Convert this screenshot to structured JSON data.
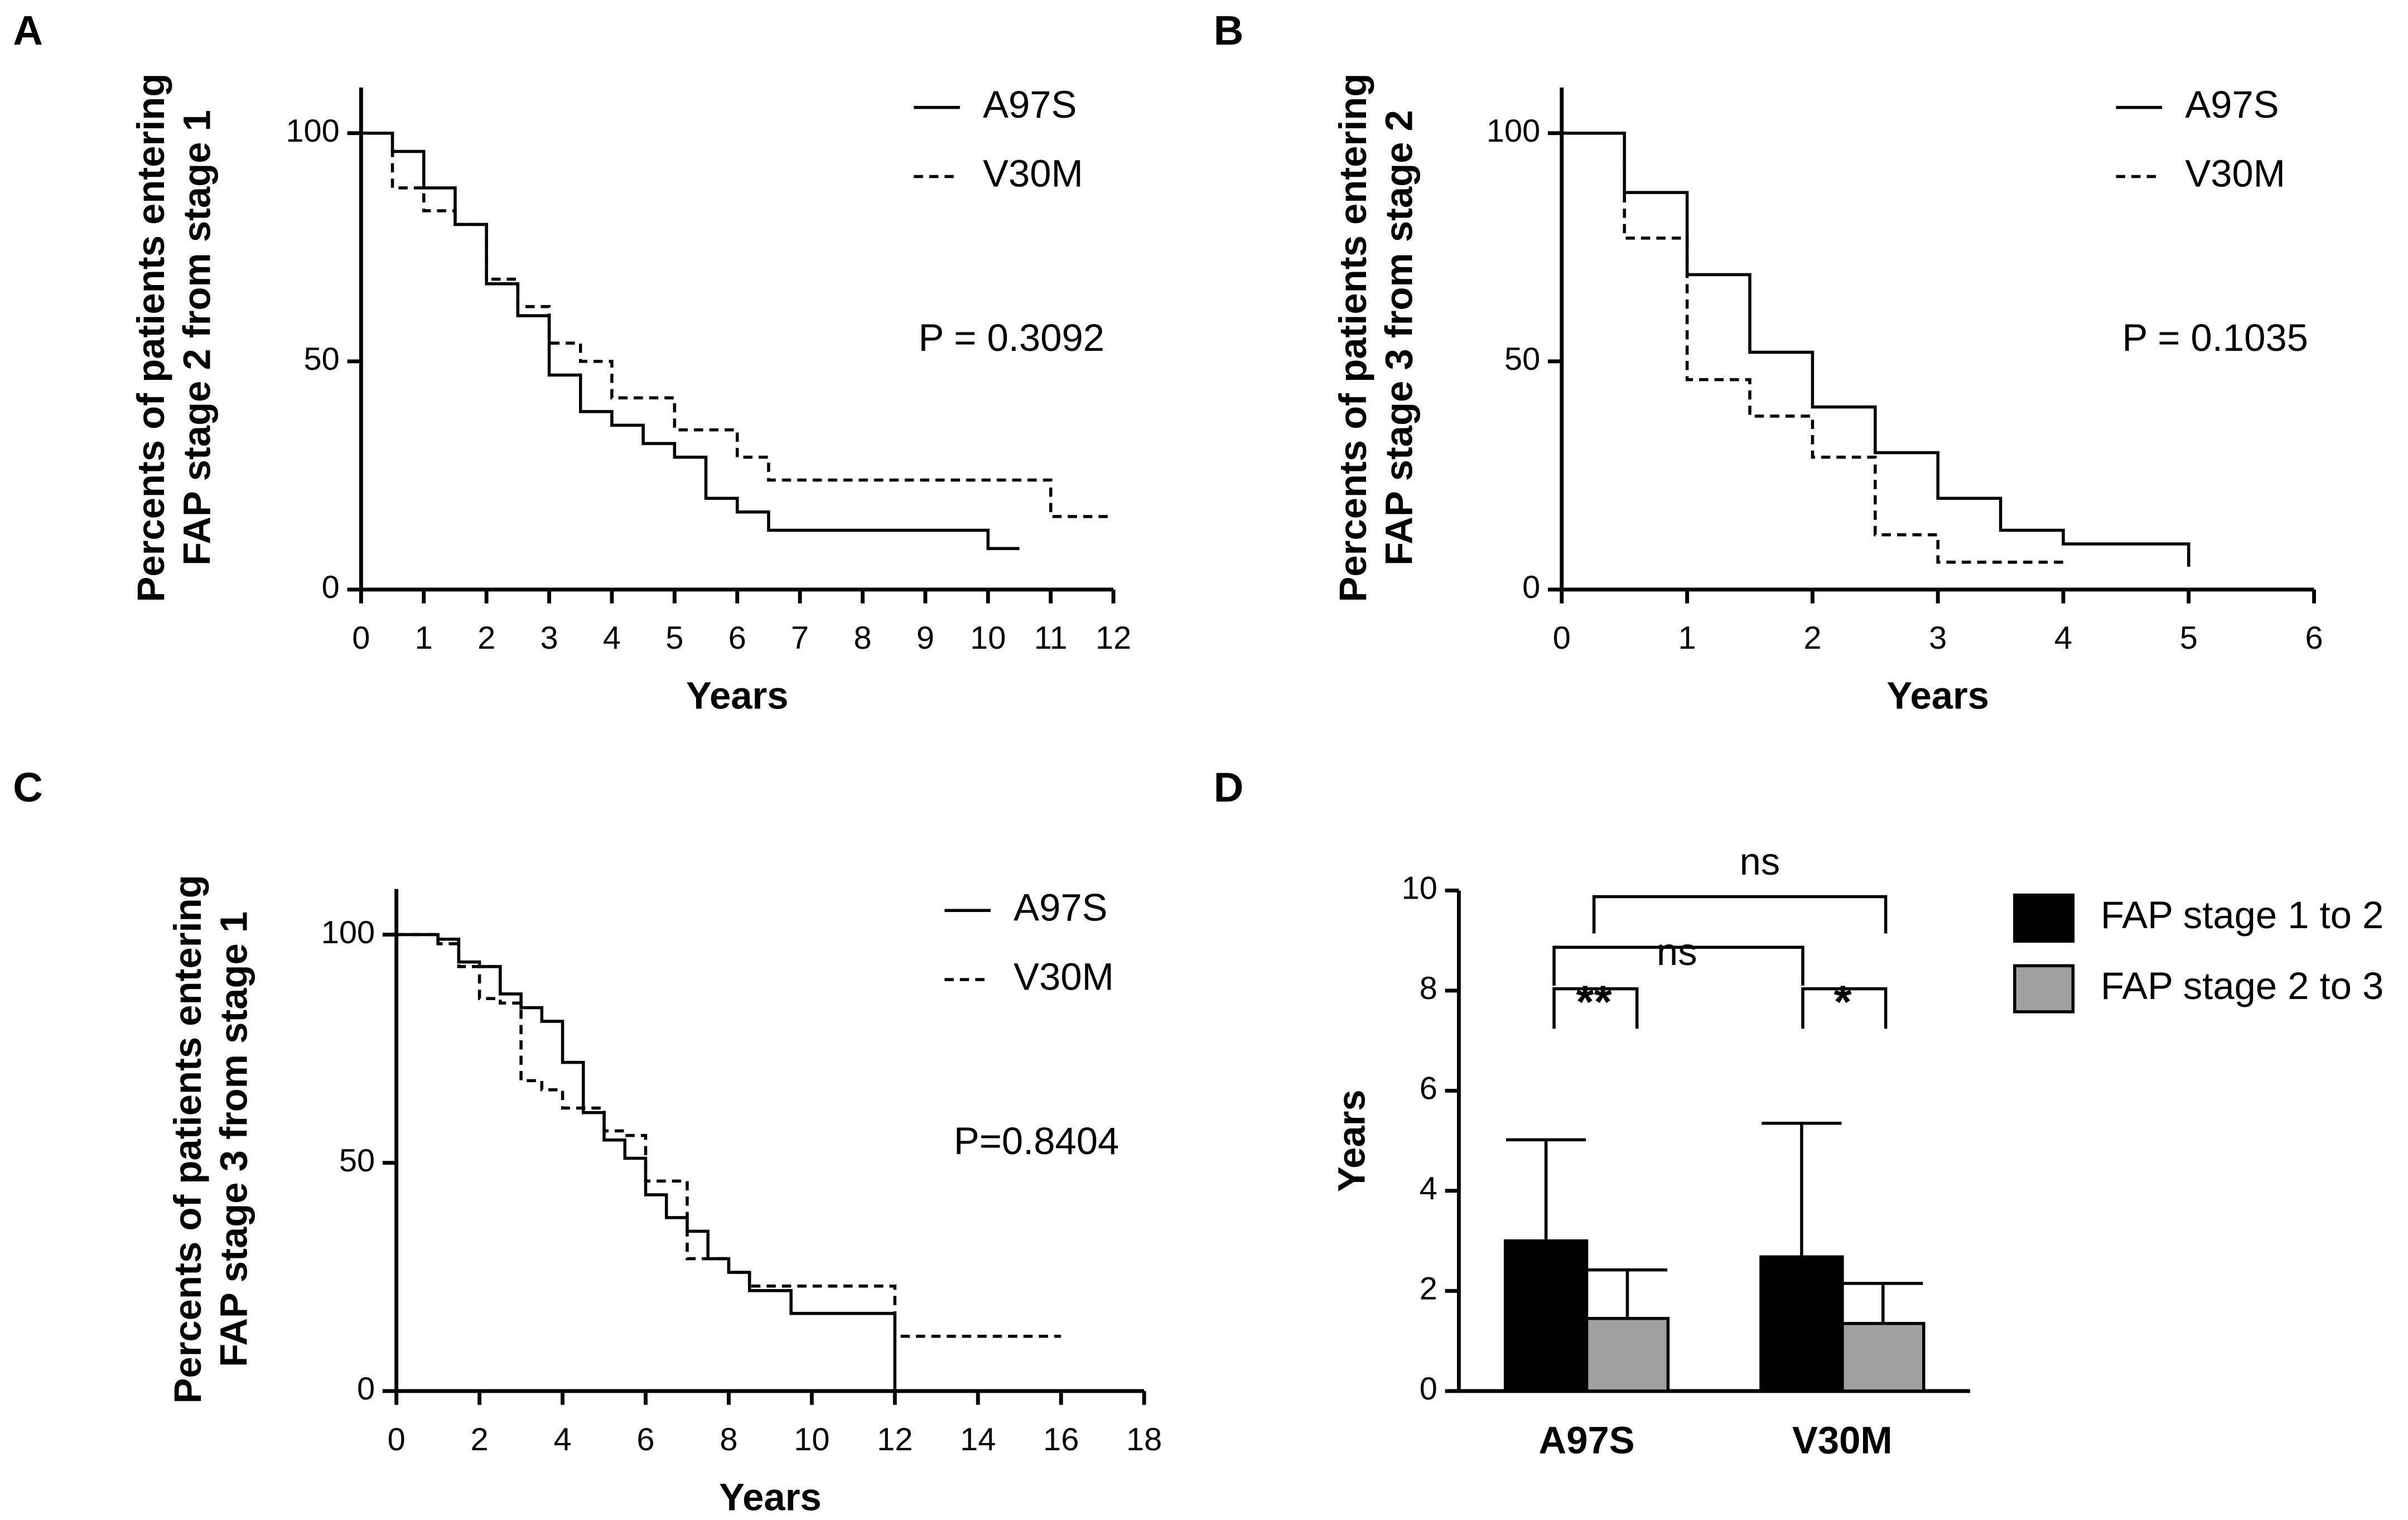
{
  "chart_data": [
    {
      "type": "step",
      "label": "A",
      "ylabel": [
        "Percents of patients entering",
        "FAP stage 2 from stage 1"
      ],
      "xlabel": "Years",
      "annotation": "P = 0.3092",
      "xlim": [
        0,
        12
      ],
      "ylim": [
        0,
        110
      ],
      "xticks": [
        0,
        1,
        2,
        3,
        4,
        5,
        6,
        7,
        8,
        9,
        10,
        11,
        12
      ],
      "yticks": [
        0,
        50,
        100
      ],
      "series": [
        {
          "name": "A97S",
          "color": "#000000",
          "dash": false,
          "x": [
            0,
            0.5,
            1,
            1.5,
            2,
            2.5,
            3,
            3.5,
            4,
            4.5,
            5,
            5.5,
            6,
            6.5,
            10,
            10.5
          ],
          "values": [
            100,
            96,
            88,
            80,
            67,
            60,
            47,
            39,
            36,
            32,
            29,
            20,
            17,
            13,
            9,
            9
          ]
        },
        {
          "name": "V30M",
          "color": "#000000",
          "dash": true,
          "x": [
            0,
            0.5,
            1,
            1.5,
            2,
            2.5,
            3,
            3.5,
            4,
            5,
            6,
            6.5,
            11,
            12
          ],
          "values": [
            100,
            88,
            83,
            80,
            68,
            62,
            54,
            50,
            42,
            35,
            29,
            24,
            16,
            16
          ]
        }
      ]
    },
    {
      "type": "step",
      "label": "B",
      "ylabel": [
        "Percents of patients entering",
        "FAP stage 3 from stage 2"
      ],
      "xlabel": "Years",
      "annotation": "P = 0.1035",
      "xlim": [
        0,
        6
      ],
      "ylim": [
        0,
        110
      ],
      "xticks": [
        0,
        1,
        2,
        3,
        4,
        5,
        6
      ],
      "yticks": [
        0,
        50,
        100
      ],
      "series": [
        {
          "name": "A97S",
          "color": "#000000",
          "dash": false,
          "x": [
            0,
            0.5,
            1,
            1.5,
            2,
            2.5,
            3,
            3.5,
            4,
            5
          ],
          "values": [
            100,
            87,
            69,
            52,
            40,
            30,
            20,
            13,
            10,
            5
          ]
        },
        {
          "name": "V30M",
          "color": "#000000",
          "dash": true,
          "x": [
            0,
            0.5,
            1,
            1.5,
            2,
            2.5,
            3,
            4
          ],
          "values": [
            100,
            77,
            46,
            38,
            29,
            12,
            6,
            6
          ]
        }
      ]
    },
    {
      "type": "step",
      "label": "C",
      "ylabel": [
        "Percents of patients entering",
        "FAP stage 3 from stage 1"
      ],
      "xlabel": "Years",
      "annotation": "P=0.8404",
      "xlim": [
        0,
        18
      ],
      "ylim": [
        0,
        110
      ],
      "xticks": [
        0,
        2,
        4,
        6,
        8,
        10,
        12,
        14,
        16,
        18
      ],
      "yticks": [
        0,
        50,
        100
      ],
      "series": [
        {
          "name": "A97S",
          "color": "#000000",
          "dash": false,
          "x": [
            0,
            1,
            1.5,
            2,
            2.5,
            3,
            3.5,
            4,
            4.5,
            5,
            5.5,
            6,
            6.5,
            7,
            7.5,
            8,
            8.5,
            9.5,
            12
          ],
          "values": [
            100,
            99,
            94,
            93,
            87,
            84,
            81,
            72,
            61,
            55,
            51,
            43,
            38,
            35,
            29,
            26,
            22,
            17,
            0
          ]
        },
        {
          "name": "V30M",
          "color": "#000000",
          "dash": true,
          "x": [
            0,
            1,
            1.5,
            2,
            2.5,
            3,
            3.5,
            4,
            5,
            5.5,
            6,
            7,
            8,
            8.5,
            12,
            16
          ],
          "values": [
            100,
            98,
            93,
            86,
            85,
            68,
            66,
            62,
            57,
            56,
            46,
            29,
            26,
            23,
            12,
            12
          ]
        }
      ]
    },
    {
      "type": "bar",
      "label": "D",
      "ylabel": "Years",
      "annotations": [
        "ns",
        "ns",
        "**",
        "*"
      ],
      "categories": [
        "A97S",
        "V30M"
      ],
      "ylim": [
        0,
        10
      ],
      "yticks": [
        0,
        2,
        4,
        6,
        8,
        10
      ],
      "series": [
        {
          "name": "FAP stage 1 to 2",
          "color": "#000000",
          "values": [
            3.0,
            2.68
          ],
          "errors": [
            2.02,
            2.67
          ]
        },
        {
          "name": "FAP stage 2 to 3",
          "color": "#a0a0a0",
          "values": [
            1.45,
            1.35
          ],
          "errors": [
            0.97,
            0.8
          ]
        }
      ]
    }
  ]
}
